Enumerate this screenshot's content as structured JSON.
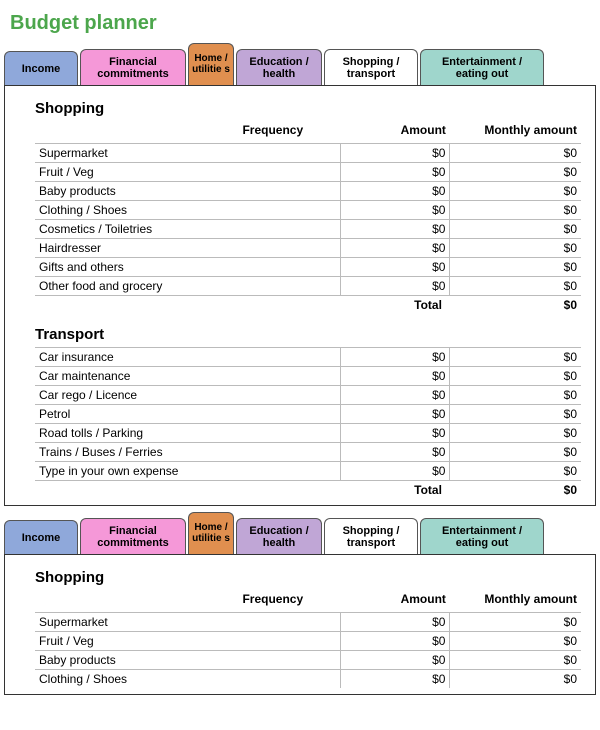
{
  "title": "Budget planner",
  "title_color": "#4ca64c",
  "tabs": [
    {
      "id": "income",
      "label": "Income",
      "bg": "#8fa8da"
    },
    {
      "id": "financial",
      "label": "Financial commitments",
      "bg": "#f598d8"
    },
    {
      "id": "home",
      "label": "Home / utilitie s",
      "bg": "#e08f4f"
    },
    {
      "id": "education",
      "label": "Education / health",
      "bg": "#c0a6d6"
    },
    {
      "id": "shopping",
      "label": "Shopping / transport",
      "bg": "#ffffff"
    },
    {
      "id": "entertain",
      "label": "Entertainment / eating out",
      "bg": "#9fd6cc"
    }
  ],
  "columns": {
    "frequency": "Frequency",
    "amount": "Amount",
    "monthly": "Monthly amount"
  },
  "sections": {
    "shopping": {
      "title": "Shopping",
      "rows": [
        {
          "label": "Supermarket",
          "amount": "$0",
          "monthly": "$0"
        },
        {
          "label": "Fruit / Veg",
          "amount": "$0",
          "monthly": "$0"
        },
        {
          "label": "Baby products",
          "amount": "$0",
          "monthly": "$0"
        },
        {
          "label": "Clothing / Shoes",
          "amount": "$0",
          "monthly": "$0"
        },
        {
          "label": "Cosmetics / Toiletries",
          "amount": "$0",
          "monthly": "$0"
        },
        {
          "label": "Hairdresser",
          "amount": "$0",
          "monthly": "$0"
        },
        {
          "label": "Gifts and others",
          "amount": "$0",
          "monthly": "$0"
        },
        {
          "label": "Other food and grocery",
          "amount": "$0",
          "monthly": "$0"
        }
      ],
      "total_label": "Total",
      "total_value": "$0"
    },
    "transport": {
      "title": "Transport",
      "rows": [
        {
          "label": "Car insurance",
          "amount": "$0",
          "monthly": "$0"
        },
        {
          "label": "Car maintenance",
          "amount": "$0",
          "monthly": "$0"
        },
        {
          "label": "Car rego / Licence",
          "amount": "$0",
          "monthly": "$0"
        },
        {
          "label": "Petrol",
          "amount": "$0",
          "monthly": "$0"
        },
        {
          "label": "Road tolls / Parking",
          "amount": "$0",
          "monthly": "$0"
        },
        {
          "label": "Trains / Buses / Ferries",
          "amount": "$0",
          "monthly": "$0"
        },
        {
          "label": "Type in your own expense",
          "amount": "$0",
          "monthly": "$0"
        }
      ],
      "total_label": "Total",
      "total_value": "$0"
    },
    "shopping2": {
      "title": "Shopping",
      "rows": [
        {
          "label": "Supermarket",
          "amount": "$0",
          "monthly": "$0"
        },
        {
          "label": "Fruit / Veg",
          "amount": "$0",
          "monthly": "$0"
        },
        {
          "label": "Baby products",
          "amount": "$0",
          "monthly": "$0"
        },
        {
          "label": "Clothing / Shoes",
          "amount": "$0",
          "monthly": "$0"
        }
      ]
    }
  }
}
